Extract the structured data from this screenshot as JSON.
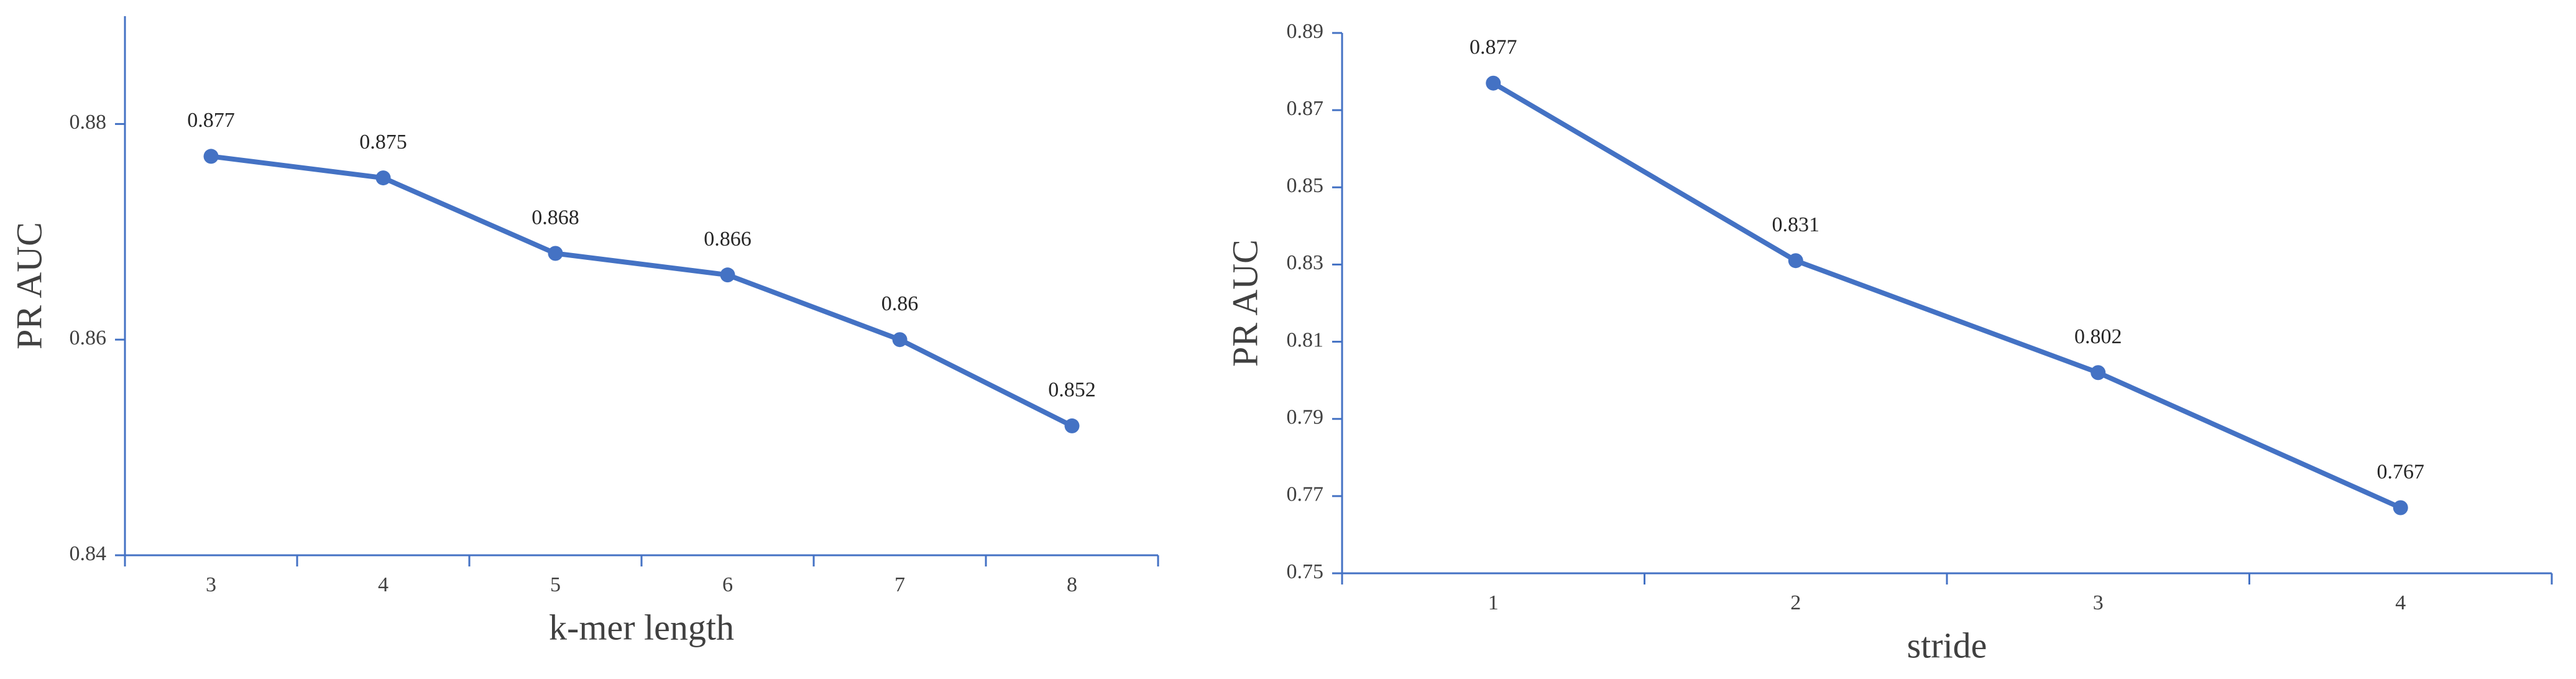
{
  "chart_data": [
    {
      "type": "line",
      "x_label": "k-mer length",
      "y_label": "PR AUC",
      "categories": [
        "3",
        "4",
        "5",
        "6",
        "7",
        "8"
      ],
      "series": [
        {
          "color": "#4472c4",
          "values": [
            0.877,
            0.875,
            0.868,
            0.866,
            0.86,
            0.852
          ]
        }
      ],
      "ylim": [
        0.84,
        0.89
      ],
      "yticks": [
        0.84,
        0.86,
        0.88
      ]
    },
    {
      "type": "line",
      "x_label": "stride",
      "y_label": "PR AUC",
      "categories": [
        "1",
        "2",
        "3",
        "4"
      ],
      "series": [
        {
          "color": "#4472c4",
          "values": [
            0.877,
            0.831,
            0.802,
            0.767
          ]
        }
      ],
      "ylim": [
        0.75,
        0.89
      ],
      "yticks": [
        0.75,
        0.77,
        0.79,
        0.81,
        0.83,
        0.85,
        0.87,
        0.89
      ]
    }
  ]
}
